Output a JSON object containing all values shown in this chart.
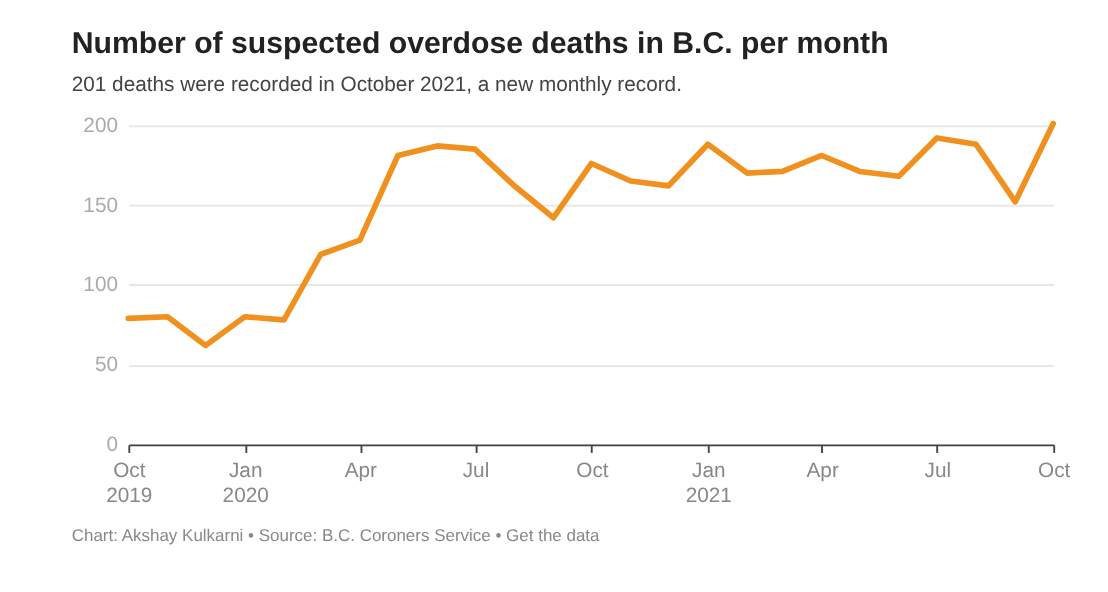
{
  "chart_data": {
    "type": "line",
    "title": "Number of suspected overdose deaths in B.C. per month",
    "subtitle": "201 deaths were recorded in October 2021, a new monthly record.",
    "x": [
      "2019-10",
      "2019-11",
      "2019-12",
      "2020-01",
      "2020-02",
      "2020-03",
      "2020-04",
      "2020-05",
      "2020-06",
      "2020-07",
      "2020-08",
      "2020-09",
      "2020-10",
      "2020-11",
      "2020-12",
      "2021-01",
      "2021-02",
      "2021-03",
      "2021-04",
      "2021-05",
      "2021-06",
      "2021-07",
      "2021-08",
      "2021-09",
      "2021-10"
    ],
    "series": [
      {
        "color": "#f0901e",
        "values": [
          79,
          80,
          62,
          80,
          78,
          119,
          128,
          181,
          187,
          185,
          162,
          142,
          176,
          165,
          162,
          188,
          170,
          171,
          181,
          171,
          168,
          192,
          188,
          152,
          201
        ]
      }
    ],
    "xlim": [
      "2019-10",
      "2021-10"
    ],
    "xticks": [
      {
        "value": "2019-10",
        "label": "Oct 2019"
      },
      {
        "value": "2020-01",
        "label": "Jan 2020"
      },
      {
        "value": "2020-04",
        "label": "Apr"
      },
      {
        "value": "2020-07",
        "label": "Jul"
      },
      {
        "value": "2020-10",
        "label": "Oct"
      },
      {
        "value": "2021-01",
        "label": "Jan 2021"
      },
      {
        "value": "2021-04",
        "label": "Apr"
      },
      {
        "value": "2021-07",
        "label": "Jul"
      },
      {
        "value": "2021-10",
        "label": "Oct"
      }
    ],
    "ylim": [
      0,
      201
    ],
    "yticks": [
      0,
      50,
      100,
      150,
      200
    ],
    "grid": "y",
    "legend": false,
    "marker": "none",
    "line_style": "solid",
    "annotations": [
      "Chart: Akshay Kulkarni • Source: B.C. Coroners Service • Get the data"
    ]
  }
}
